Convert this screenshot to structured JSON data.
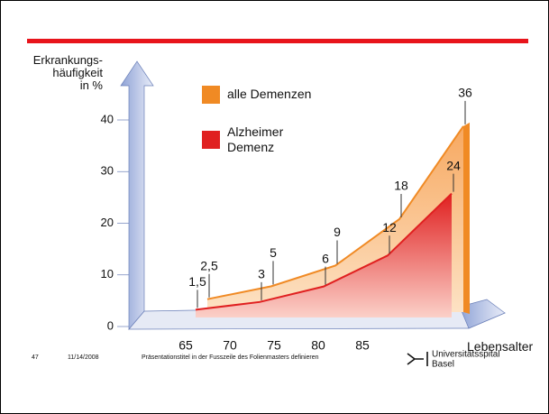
{
  "chart_data": {
    "type": "area",
    "y_label": "Erkrankungs-\nhäufigkeit\nin %",
    "x_label": "Lebensalter",
    "categories": [
      "65",
      "70",
      "75",
      "80",
      "85"
    ],
    "series": [
      {
        "name": "alle Demenzen",
        "color": "#f08a24",
        "values": [
          2.5,
          5,
          9,
          18,
          36
        ],
        "value_labels": [
          "2,5",
          "5",
          "9",
          "18",
          "36"
        ]
      },
      {
        "name": "Alzheimer Demenz",
        "color": "#e02020",
        "values": [
          1.5,
          3,
          6,
          12,
          24
        ],
        "value_labels": [
          "1,5",
          "3",
          "6",
          "12",
          "24"
        ]
      }
    ],
    "ylim": [
      0,
      40
    ],
    "yticks": [
      0,
      10,
      20,
      30,
      40
    ],
    "grid": false
  },
  "footer": {
    "page": "47",
    "date": "11/14/2008",
    "text": "Präsentationstitel in der Fusszeile des Folienmasters definieren",
    "logo": [
      "Universitätsspital",
      "Basel"
    ]
  }
}
